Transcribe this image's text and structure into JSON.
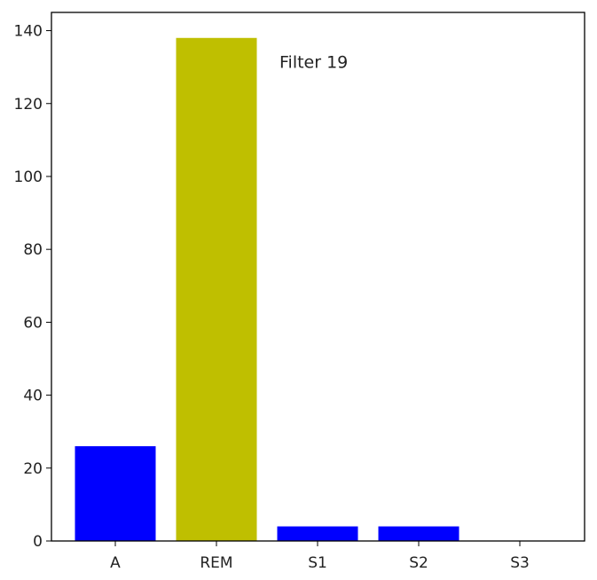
{
  "chart_data": {
    "type": "bar",
    "categories": [
      "A",
      "REM",
      "S1",
      "S2",
      "S3"
    ],
    "values": [
      26,
      138,
      4,
      4,
      0
    ],
    "colors": [
      "#0000ff",
      "#bfbf00",
      "#0000ff",
      "#0000ff",
      "#0000ff"
    ],
    "title": "",
    "xlabel": "",
    "ylabel": "",
    "ylim": [
      0,
      145
    ],
    "yticks": [
      0,
      20,
      40,
      60,
      80,
      100,
      120,
      140
    ],
    "grid": false,
    "annotation": {
      "text": "Filter 19",
      "x_category": "REM",
      "y": 131
    }
  }
}
